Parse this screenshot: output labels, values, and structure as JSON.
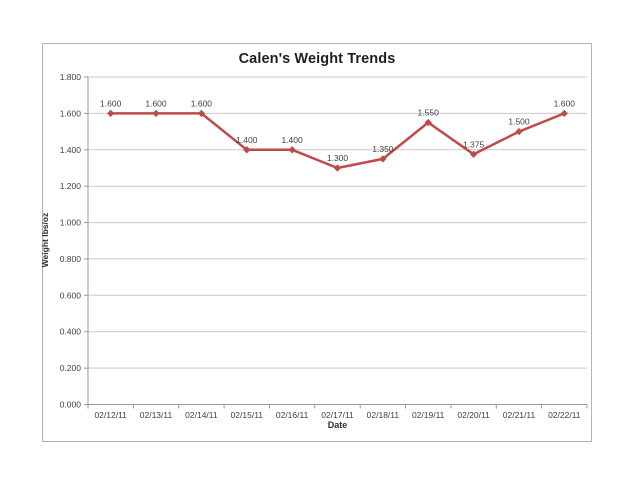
{
  "page": {
    "background": "#ffffff"
  },
  "chart_data": {
    "type": "line",
    "title": "Calen's Weight Trends",
    "xlabel": "Date",
    "ylabel": "Weight lbs/oz",
    "categories": [
      "02/12/11",
      "02/13/11",
      "02/14/11",
      "02/15/11",
      "02/16/11",
      "02/17/11",
      "02/18/11",
      "02/19/11",
      "02/20/11",
      "02/21/11",
      "02/22/11"
    ],
    "series": [
      {
        "values": [
          1.6,
          1.6,
          1.6,
          1.4,
          1.4,
          1.3,
          1.35,
          1.55,
          1.375,
          1.5,
          1.6
        ],
        "data_labels": [
          "1.600",
          "1.600",
          "1.600",
          "1.400",
          "1.400",
          "1.300",
          "1.350",
          "1.550",
          "1.375",
          "1.500",
          "1.600"
        ]
      }
    ],
    "ylim": [
      0.0,
      1.8
    ],
    "ytick_step": 0.2,
    "ytick_labels": [
      "0.000",
      "0.200",
      "0.400",
      "0.600",
      "0.800",
      "1.000",
      "1.200",
      "1.400",
      "1.600",
      "1.800"
    ],
    "grid": true,
    "legend": "none",
    "marker": "diamond",
    "colors": {
      "line": "#be4b48",
      "marker": "#be4b48",
      "gridline": "#c9c9c9",
      "axis": "#9a9a9a",
      "tick_label": "#3f3f3f",
      "data_label": "#3f3f3f",
      "title": "#1f1f1f",
      "frame_border": "#b3b3b3"
    }
  }
}
